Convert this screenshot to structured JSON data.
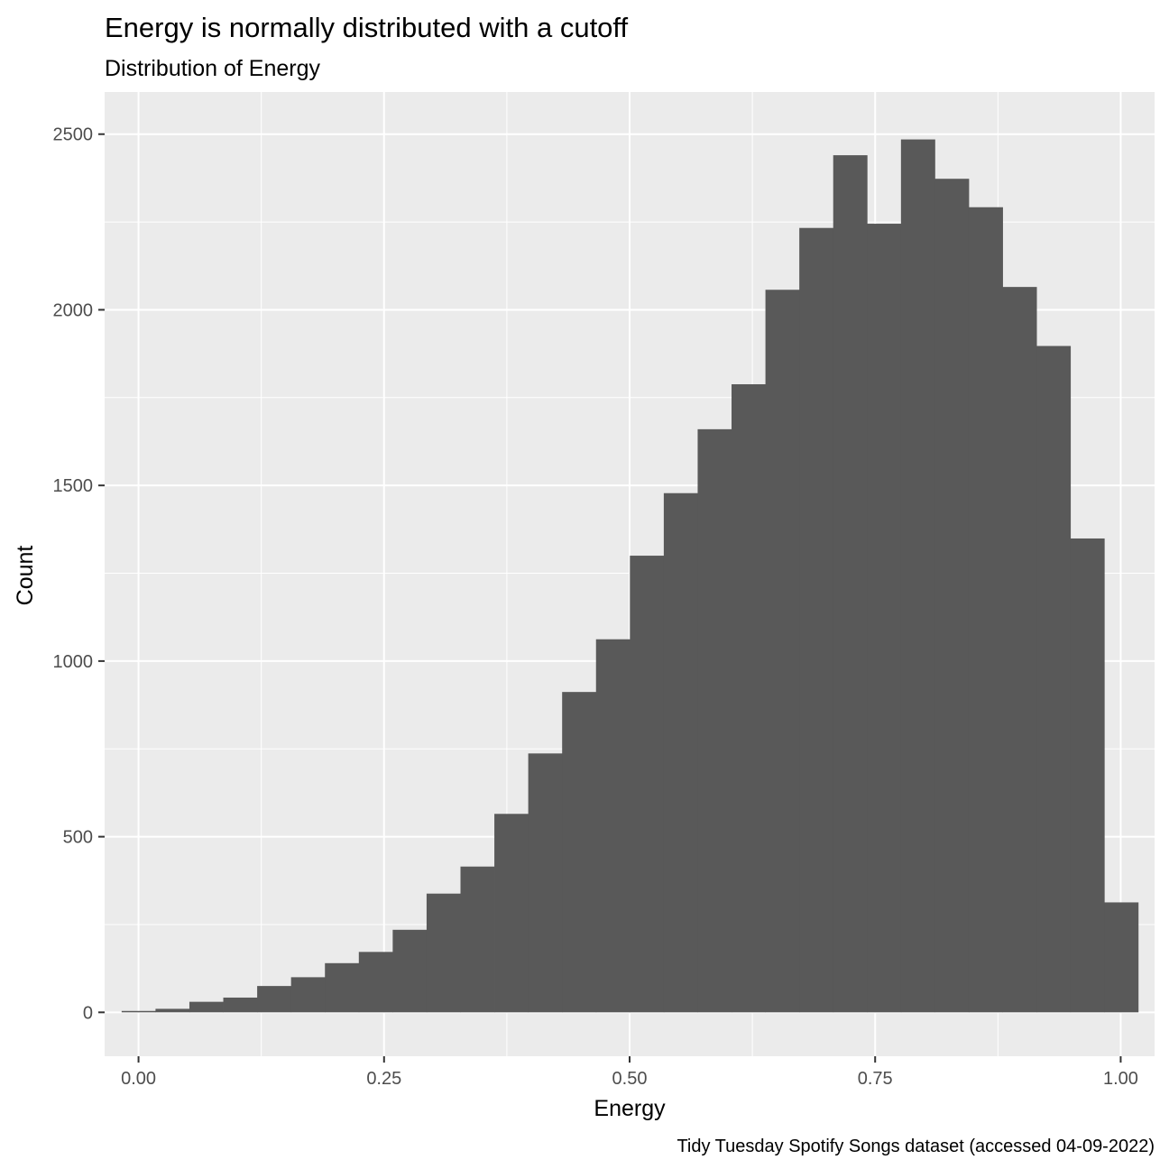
{
  "chart_data": {
    "type": "bar",
    "title": "Energy is normally distributed with a cutoff",
    "subtitle": "Distribution of Energy",
    "xlabel": "Energy",
    "ylabel": "Count",
    "caption": "Tidy Tuesday Spotify Songs dataset (accessed 04-09-2022)",
    "xlim": [
      -0.0345,
      1.0345
    ],
    "ylim": [
      -125,
      2620
    ],
    "x_ticks": [
      0.0,
      0.25,
      0.5,
      0.75,
      1.0
    ],
    "x_tick_labels": [
      "0.00",
      "0.25",
      "0.50",
      "0.75",
      "1.00"
    ],
    "y_ticks": [
      0,
      500,
      1000,
      1500,
      2000,
      2500
    ],
    "y_tick_labels": [
      "0",
      "500",
      "1000",
      "1500",
      "2000",
      "2500"
    ],
    "grid": true,
    "colors": {
      "bar": "#595959",
      "panel": "#ebebeb",
      "grid": "#ffffff"
    },
    "bins": {
      "x_start": -0.0172,
      "bin_width": 0.0345,
      "counts": [
        4,
        10,
        30,
        42,
        75,
        100,
        140,
        172,
        235,
        338,
        415,
        565,
        737,
        912,
        1062,
        1300,
        1478,
        1660,
        1788,
        2057,
        2233,
        2440,
        2245,
        2485,
        2373,
        2292,
        2065,
        1897,
        1349,
        313
      ]
    }
  }
}
